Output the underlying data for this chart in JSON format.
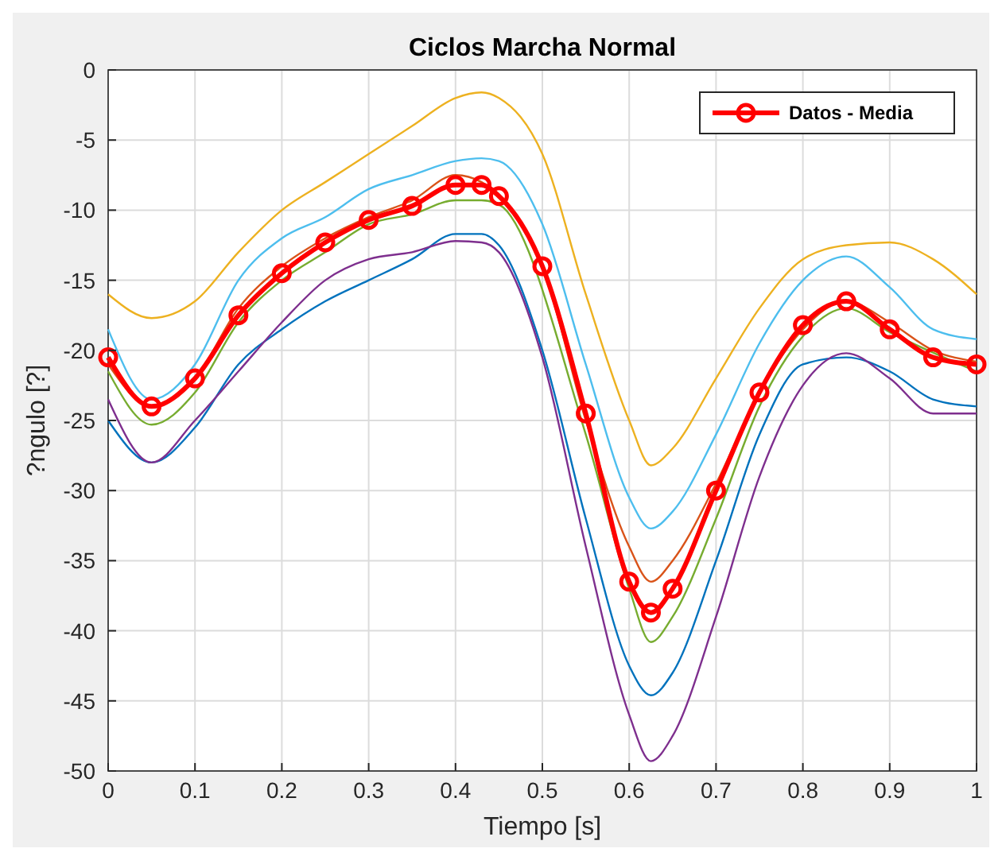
{
  "chart_data": {
    "type": "line",
    "title": "Ciclos Marcha Normal",
    "xlabel": "Tiempo [s]",
    "ylabel": "?ngulo [?]",
    "x": [
      0,
      0.05,
      0.1,
      0.15,
      0.2,
      0.25,
      0.3,
      0.35,
      0.4,
      0.43,
      0.45,
      0.5,
      0.55,
      0.6,
      0.625,
      0.65,
      0.7,
      0.75,
      0.8,
      0.85,
      0.9,
      0.95,
      1
    ],
    "xlim": [
      0,
      1
    ],
    "xticks": [
      0,
      0.1,
      0.2,
      0.3,
      0.4,
      0.5,
      0.6,
      0.7,
      0.8,
      0.9,
      1
    ],
    "ylim": [
      -50,
      0
    ],
    "yticks": [
      -50,
      -45,
      -40,
      -35,
      -30,
      -25,
      -20,
      -15,
      -10,
      -5,
      0
    ],
    "grid": true,
    "legend": "top right",
    "line_style": "solid",
    "marker": "none",
    "series": [
      {
        "color": "#edb120",
        "values": [
          -16,
          -17.7,
          -16.5,
          -13,
          -10,
          -8,
          -6,
          -4,
          -2,
          -1.6,
          -2,
          -6,
          -16,
          -25,
          -28.2,
          -27,
          -22,
          -17,
          -13.5,
          -12.5,
          -12.3,
          -13.5,
          -16
        ]
      },
      {
        "color": "#4dbeee",
        "values": [
          -18.5,
          -23.5,
          -21,
          -15,
          -12,
          -10.5,
          -8.5,
          -7.5,
          -6.5,
          -6.3,
          -6.5,
          -11,
          -21,
          -30.5,
          -32.7,
          -31.5,
          -26,
          -19.5,
          -15,
          -13.3,
          -15.5,
          -18.5,
          -19.2
        ]
      },
      {
        "color": "#d95319",
        "values": [
          -21,
          -24,
          -22,
          -17,
          -14,
          -12,
          -10.5,
          -9.3,
          -7.5,
          -8,
          -9,
          -14,
          -25,
          -34,
          -36.5,
          -35,
          -29.5,
          -23,
          -18.5,
          -16.5,
          -18,
          -20,
          -20.8
        ]
      },
      {
        "color": "#77ac30",
        "values": [
          -21.5,
          -25.3,
          -23,
          -18,
          -15,
          -13,
          -11,
          -10.3,
          -9.3,
          -9.3,
          -9.6,
          null,
          -26,
          -37,
          -40.8,
          -39,
          -32,
          -24,
          -19,
          -17,
          -18.7,
          null,
          -21.5
        ]
      },
      {
        "color": "#0072bd",
        "values": [
          -25,
          -28,
          -25.5,
          -21,
          -18.5,
          -16.5,
          -15,
          -13.5,
          -11.7,
          -11.7,
          -12.5,
          -20,
          -32,
          -42.5,
          -44.6,
          -43,
          -35,
          -26,
          -21,
          -20.5,
          -21.5,
          -23.5,
          -24
        ]
      },
      {
        "color": "#7e2f8e",
        "values": [
          -23.5,
          -28,
          -25,
          -21.5,
          -18,
          -15,
          -13.5,
          -13,
          -12.2,
          -12.3,
          -13,
          -20.5,
          -34,
          -46,
          -49.3,
          -47.5,
          -39,
          -29,
          -22.5,
          -20.2,
          -22,
          -24.5,
          -24.5
        ]
      },
      {
        "name": "Datos - Media",
        "color": "#ff0000",
        "marker": "circle",
        "values": [
          -20.5,
          -24,
          -22,
          -17.5,
          -14.5,
          -12.3,
          -10.7,
          -9.7,
          -8.2,
          -8.2,
          -9,
          -14,
          -24.5,
          -36.5,
          -38.7,
          -37,
          -30,
          -23,
          -18.2,
          -16.5,
          -18.5,
          -20.5,
          -21
        ]
      }
    ]
  }
}
